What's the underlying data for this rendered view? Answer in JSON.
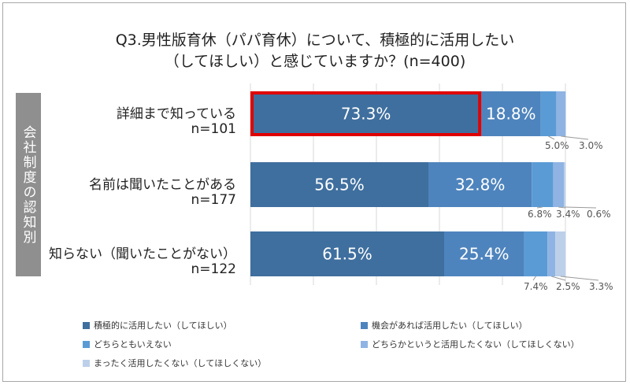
{
  "title_line1": "Q3.男性版育休（パパ育休）について、積極的に活用したい",
  "title_line2": "（してほしい）と感じていますか？(n=400)",
  "side_label": "会社制度の認知別",
  "chart_data": {
    "type": "bar",
    "orientation": "horizontal-stacked-100",
    "title": "Q3.男性版育休（パパ育休）について、積極的に活用したい（してほしい）と感じていますか？(n=400)",
    "categories": [
      {
        "label": "詳細まで知っている",
        "n": "n=101"
      },
      {
        "label": "名前は聞いたことがある",
        "n": "n=177"
      },
      {
        "label": "知らない（聞いたことがない）",
        "n": "n=122"
      }
    ],
    "series": [
      {
        "name": "積極的に活用したい（してほしい）",
        "color": "#3f6f9e",
        "values": [
          73.3,
          56.5,
          61.5
        ],
        "labels": [
          "73.3%",
          "56.5%",
          "61.5%"
        ]
      },
      {
        "name": "機会があれば活用したい（してほしい）",
        "color": "#4e84bd",
        "values": [
          18.8,
          32.8,
          25.4
        ],
        "labels": [
          "18.8%",
          "32.8%",
          "25.4%"
        ]
      },
      {
        "name": "どちらともいえない",
        "color": "#5b9bd5",
        "values": [
          5.0,
          6.8,
          7.4
        ],
        "labels": [
          "5.0%",
          "6.8%",
          "7.4%"
        ]
      },
      {
        "name": "どちらかというと活用したくない（してほしくない）",
        "color": "#8fb4e3",
        "values": [
          3.0,
          3.4,
          2.5
        ],
        "labels": [
          "3.0%",
          "3.4%",
          "2.5%"
        ]
      },
      {
        "name": "まったく活用したくない（してほしくない）",
        "color": "#bdd0ea",
        "values": [
          0.0,
          0.6,
          3.3
        ],
        "labels": [
          "",
          "0.6%",
          "3.3%"
        ]
      }
    ],
    "highlight": {
      "category_index": 0,
      "series_index": 0,
      "color": "#e00000"
    },
    "xlim": [
      0,
      100
    ],
    "grid": true,
    "legend_position": "bottom"
  }
}
